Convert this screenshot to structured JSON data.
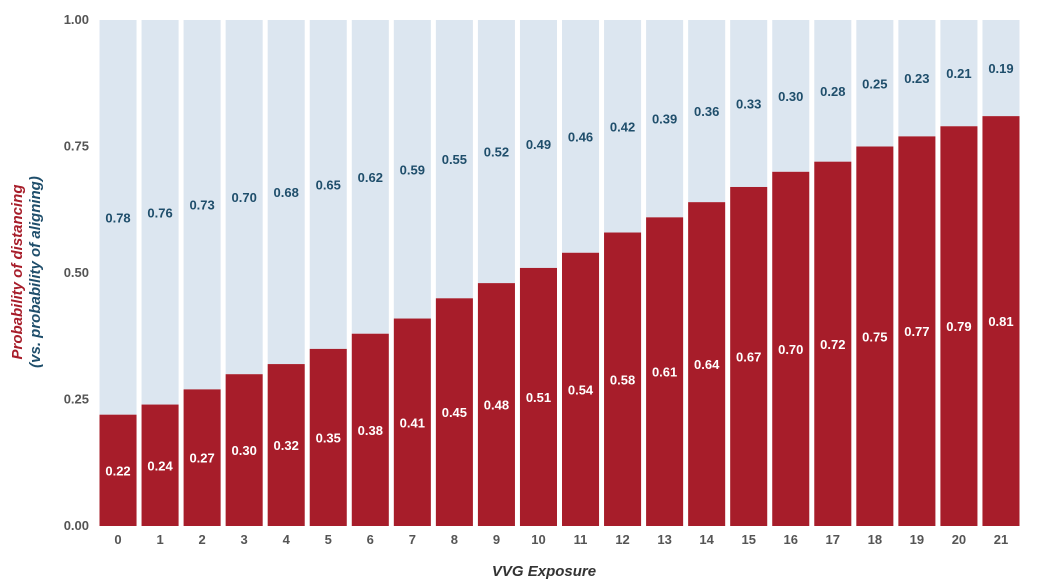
{
  "chart_data": {
    "type": "bar",
    "stacked": true,
    "categories": [
      "0",
      "1",
      "2",
      "3",
      "4",
      "5",
      "6",
      "7",
      "8",
      "9",
      "10",
      "11",
      "12",
      "13",
      "14",
      "15",
      "16",
      "17",
      "18",
      "19",
      "20",
      "21"
    ],
    "series": [
      {
        "values": [
          0.22,
          0.24,
          0.27,
          0.3,
          0.32,
          0.35,
          0.38,
          0.41,
          0.45,
          0.48,
          0.51,
          0.54,
          0.58,
          0.61,
          0.64,
          0.67,
          0.7,
          0.72,
          0.75,
          0.77,
          0.79,
          0.81
        ],
        "color": "#a71d2a"
      },
      {
        "values": [
          0.78,
          0.76,
          0.73,
          0.7,
          0.68,
          0.65,
          0.62,
          0.59,
          0.55,
          0.52,
          0.49,
          0.46,
          0.42,
          0.39,
          0.36,
          0.33,
          0.3,
          0.28,
          0.25,
          0.23,
          0.21,
          0.19
        ],
        "color": "#dce6f0"
      }
    ],
    "bar_labels_bottom": [
      "0.22",
      "0.24",
      "0.27",
      "0.30",
      "0.32",
      "0.35",
      "0.38",
      "0.41",
      "0.45",
      "0.48",
      "0.51",
      "0.54",
      "0.58",
      "0.61",
      "0.64",
      "0.67",
      "0.70",
      "0.72",
      "0.75",
      "0.77",
      "0.79",
      "0.81"
    ],
    "bar_labels_top": [
      "0.78",
      "0.76",
      "0.73",
      "0.70",
      "0.68",
      "0.65",
      "0.62",
      "0.59",
      "0.55",
      "0.52",
      "0.49",
      "0.46",
      "0.42",
      "0.39",
      "0.36",
      "0.33",
      "0.30",
      "0.28",
      "0.25",
      "0.23",
      "0.21",
      "0.19"
    ],
    "xlabel": "VVG Exposure",
    "ylabel": "Probability of distancing",
    "ylabel_secondary": "(vs. probability of aligning)",
    "ylabel_color": "#a71d2a",
    "ylabel_secondary_color": "#1f4e6b",
    "yticks": [
      "0.00",
      "0.25",
      "0.50",
      "0.75",
      "1.00"
    ],
    "ylim": [
      0,
      1
    ],
    "grid": false,
    "legend": "none"
  }
}
